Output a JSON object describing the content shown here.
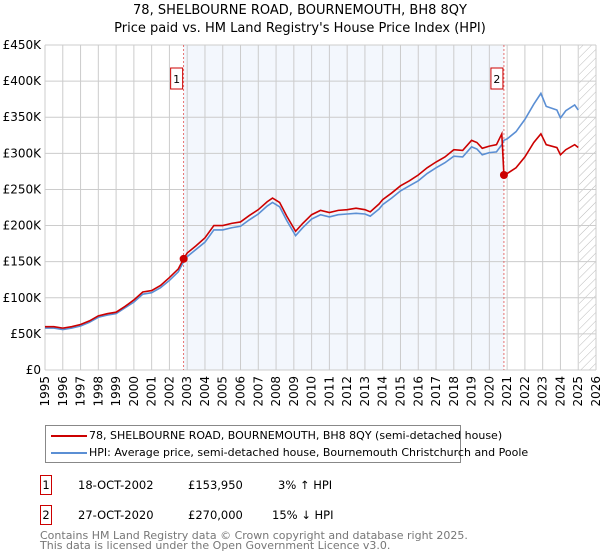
{
  "title_line1": "78, SHELBOURNE ROAD, BOURNEMOUTH, BH8 8QY",
  "title_line2": "Price paid vs. HM Land Registry's House Price Index (HPI)",
  "chart_data": {
    "type": "line",
    "title": "78, SHELBOURNE ROAD, BOURNEMOUTH, BH8 8QY — Price paid vs. HM Land Registry's House Price Index (HPI)",
    "xlim": [
      1995,
      2026
    ],
    "ylim": [
      0,
      450000
    ],
    "x_ticks": [
      "1995",
      "1996",
      "1997",
      "1998",
      "1999",
      "2000",
      "2001",
      "2002",
      "2003",
      "2004",
      "2005",
      "2006",
      "2007",
      "2008",
      "2009",
      "2010",
      "2011",
      "2012",
      "2013",
      "2014",
      "2015",
      "2016",
      "2017",
      "2018",
      "2019",
      "2020",
      "2021",
      "2022",
      "2023",
      "2024",
      "2025",
      "2026"
    ],
    "y_ticks": [
      {
        "v": 0,
        "label": "£0"
      },
      {
        "v": 50000,
        "label": "£50K"
      },
      {
        "v": 100000,
        "label": "£100K"
      },
      {
        "v": 150000,
        "label": "£150K"
      },
      {
        "v": 200000,
        "label": "£200K"
      },
      {
        "v": 250000,
        "label": "£250K"
      },
      {
        "v": 300000,
        "label": "£300K"
      },
      {
        "v": 350000,
        "label": "£350K"
      },
      {
        "v": 400000,
        "label": "£400K"
      },
      {
        "v": 450000,
        "label": "£450K"
      }
    ],
    "grid": true,
    "shaded_range": [
      2002.8,
      2020.82
    ],
    "hatched_from": 2025.05,
    "series": [
      {
        "name": "78, SHELBOURNE ROAD, BOURNEMOUTH, BH8 8QY (semi-detached house)",
        "color": "#cc0000",
        "x": [
          1995,
          1995.5,
          1996,
          1996.5,
          1997,
          1997.5,
          1998,
          1998.5,
          1999,
          1999.5,
          2000,
          2000.5,
          2001,
          2001.5,
          2002,
          2002.5,
          2002.8,
          2003,
          2003.5,
          2004,
          2004.5,
          2005,
          2005.5,
          2006,
          2006.5,
          2007,
          2007.5,
          2007.8,
          2008.2,
          2008.6,
          2009.1,
          2009.5,
          2010,
          2010.5,
          2011,
          2011.5,
          2012,
          2012.5,
          2013,
          2013.3,
          2013.8,
          2014,
          2014.5,
          2015,
          2015.5,
          2016,
          2016.5,
          2017,
          2017.5,
          2018,
          2018.5,
          2019,
          2019.3,
          2019.6,
          2020,
          2020.4,
          2020.7,
          2020.82,
          2021,
          2021.5,
          2022,
          2022.5,
          2022.9,
          2023.2,
          2023.8,
          2024,
          2024.3,
          2024.8,
          2025
        ],
        "y": [
          60000,
          60000,
          58000,
          60000,
          63000,
          68000,
          75000,
          78000,
          80000,
          88000,
          97000,
          108000,
          110000,
          117000,
          128000,
          140000,
          153950,
          162000,
          172000,
          183000,
          200000,
          200000,
          203000,
          205000,
          214000,
          222000,
          233000,
          238000,
          232000,
          213000,
          192000,
          203000,
          215000,
          221000,
          218000,
          221000,
          222000,
          224000,
          222000,
          219000,
          230000,
          236000,
          245000,
          255000,
          262000,
          270000,
          280000,
          288000,
          295000,
          305000,
          304000,
          318000,
          315000,
          307000,
          310000,
          312000,
          327000,
          270000,
          272000,
          280000,
          295000,
          315000,
          327000,
          312000,
          308000,
          298000,
          305000,
          312000,
          308000
        ]
      },
      {
        "name": "HPI: Average price, semi-detached house, Bournemouth Christchurch and Poole",
        "color": "#5b8fd4",
        "x": [
          1995,
          1995.5,
          1996,
          1996.5,
          1997,
          1997.5,
          1998,
          1998.5,
          1999,
          1999.5,
          2000,
          2000.5,
          2001,
          2001.5,
          2002,
          2002.5,
          2002.8,
          2003,
          2003.5,
          2004,
          2004.5,
          2005,
          2005.5,
          2006,
          2006.5,
          2007,
          2007.5,
          2007.8,
          2008.2,
          2008.6,
          2009.1,
          2009.5,
          2010,
          2010.5,
          2011,
          2011.5,
          2012,
          2012.5,
          2013,
          2013.3,
          2013.8,
          2014,
          2014.5,
          2015,
          2015.5,
          2016,
          2016.5,
          2017,
          2017.5,
          2018,
          2018.5,
          2019,
          2019.3,
          2019.6,
          2020,
          2020.4,
          2020.7,
          2020.82,
          2021,
          2021.5,
          2022,
          2022.5,
          2022.9,
          2023.2,
          2023.8,
          2024,
          2024.3,
          2024.8,
          2025
        ],
        "y": [
          58000,
          58000,
          56000,
          58000,
          61000,
          66000,
          73000,
          76000,
          78000,
          86000,
          94000,
          105000,
          107000,
          114000,
          124000,
          136000,
          150000,
          157000,
          167000,
          177000,
          194000,
          194000,
          197000,
          199000,
          208000,
          216000,
          227000,
          232000,
          226000,
          207000,
          186000,
          197000,
          209000,
          215000,
          212000,
          215000,
          216000,
          217000,
          216000,
          213000,
          223000,
          229000,
          238000,
          248000,
          255000,
          262000,
          272000,
          280000,
          287000,
          296000,
          295000,
          309000,
          306000,
          298000,
          301000,
          302000,
          312000,
          318000,
          320000,
          330000,
          347000,
          368000,
          383000,
          365000,
          360000,
          349000,
          359000,
          367000,
          360000
        ]
      }
    ],
    "sales": [
      {
        "label": "1",
        "x": 2002.8,
        "y": 153950
      },
      {
        "label": "2",
        "x": 2020.82,
        "y": 270000
      }
    ]
  },
  "legend": {
    "red": "78, SHELBOURNE ROAD, BOURNEMOUTH, BH8 8QY (semi-detached house)",
    "blue": "HPI: Average price, semi-detached house, Bournemouth Christchurch and Poole"
  },
  "sales_table": [
    {
      "num": "1",
      "date": "18-OCT-2002",
      "price": "£153,950",
      "hpi": "3% ↑ HPI"
    },
    {
      "num": "2",
      "date": "27-OCT-2020",
      "price": "£270,000",
      "hpi": "15% ↓ HPI"
    }
  ],
  "footer": {
    "line1": "Contains HM Land Registry data © Crown copyright and database right 2025.",
    "line2": "This data is licensed under the Open Government Licence v3.0."
  }
}
